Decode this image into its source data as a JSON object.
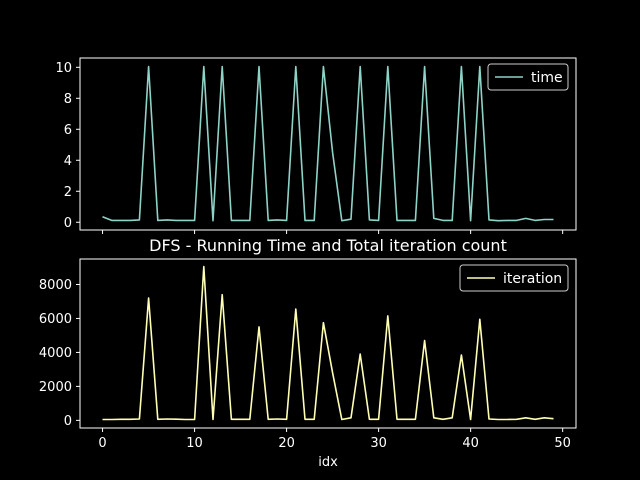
{
  "chart_data": [
    {
      "type": "line",
      "title": "",
      "xlabel": "",
      "ylabel": "",
      "xlim": [
        -2.45,
        51.45
      ],
      "ylim": [
        -0.5,
        10.6
      ],
      "xticks": [
        0,
        10,
        20,
        30,
        40,
        50
      ],
      "yticks": [
        0,
        2,
        4,
        6,
        8,
        10
      ],
      "show_xtick_labels": false,
      "legend_position": "top-right",
      "series": [
        {
          "name": "time",
          "color": "#8dd3c7",
          "x": [
            0,
            1,
            2,
            3,
            4,
            5,
            6,
            7,
            8,
            9,
            10,
            11,
            12,
            13,
            14,
            15,
            16,
            17,
            18,
            19,
            20,
            21,
            22,
            23,
            24,
            25,
            26,
            27,
            28,
            29,
            30,
            31,
            32,
            33,
            34,
            35,
            36,
            37,
            38,
            39,
            40,
            41,
            42,
            43,
            44,
            45,
            46,
            47,
            48,
            49
          ],
          "y": [
            0.35,
            0.12,
            0.12,
            0.12,
            0.15,
            10.05,
            0.12,
            0.15,
            0.12,
            0.12,
            0.12,
            10.05,
            0.1,
            10.05,
            0.12,
            0.12,
            0.12,
            10.05,
            0.12,
            0.15,
            0.12,
            10.05,
            0.12,
            0.12,
            10.05,
            4.5,
            0.1,
            0.2,
            10.05,
            0.15,
            0.12,
            10.05,
            0.12,
            0.12,
            0.12,
            10.05,
            0.25,
            0.12,
            0.12,
            10.05,
            0.1,
            10.05,
            0.15,
            0.1,
            0.12,
            0.12,
            0.25,
            0.12,
            0.18,
            0.18
          ]
        }
      ]
    },
    {
      "type": "line",
      "title": "DFS - Running Time and Total iteration count",
      "xlabel": "idx",
      "ylabel": "",
      "xlim": [
        -2.45,
        51.45
      ],
      "ylim": [
        -450,
        9500
      ],
      "xticks": [
        0,
        10,
        20,
        30,
        40,
        50
      ],
      "yticks": [
        0,
        2000,
        4000,
        6000,
        8000
      ],
      "show_xtick_labels": true,
      "legend_position": "top-right",
      "series": [
        {
          "name": "iteration",
          "color": "#ffffb3",
          "x": [
            0,
            1,
            2,
            3,
            4,
            5,
            6,
            7,
            8,
            9,
            10,
            11,
            12,
            13,
            14,
            15,
            16,
            17,
            18,
            19,
            20,
            21,
            22,
            23,
            24,
            25,
            26,
            27,
            28,
            29,
            30,
            31,
            32,
            33,
            34,
            35,
            36,
            37,
            38,
            39,
            40,
            41,
            42,
            43,
            44,
            45,
            46,
            47,
            48,
            49
          ],
          "y": [
            50,
            50,
            60,
            60,
            80,
            7200,
            60,
            80,
            70,
            50,
            50,
            9050,
            50,
            7400,
            60,
            60,
            60,
            5500,
            60,
            80,
            60,
            6550,
            60,
            60,
            5750,
            2800,
            50,
            150,
            3900,
            60,
            60,
            6150,
            60,
            60,
            60,
            4700,
            150,
            60,
            150,
            3850,
            50,
            5950,
            80,
            50,
            50,
            60,
            150,
            60,
            150,
            100
          ]
        }
      ]
    }
  ]
}
